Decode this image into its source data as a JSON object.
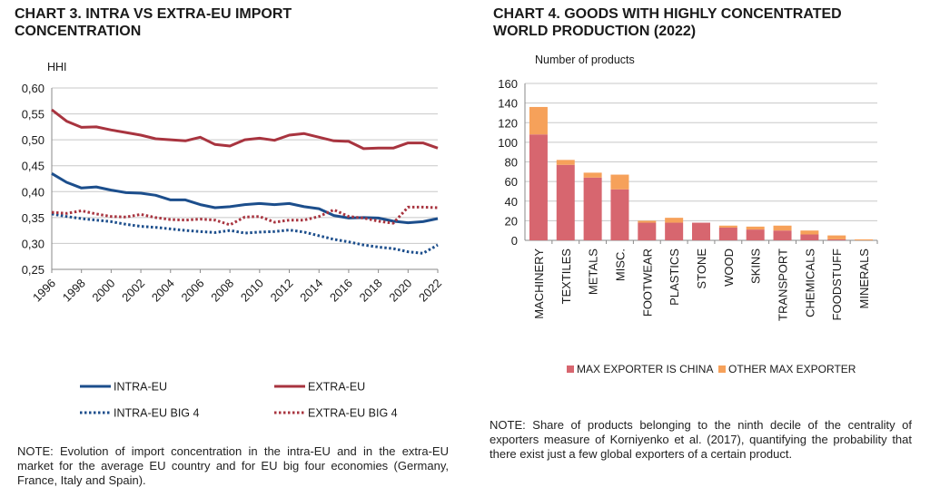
{
  "chart3": {
    "title_line1": "CHART 3. INTRA VS EXTRA-EU IMPORT",
    "title_line2": "CONCENTRATION",
    "note": "NOTE: Evolution of import concentration in the intra-EU and in the extra-EU market for the average EU country and for EU big four economies (Germany, France, Italy and Spain)."
  },
  "chart4": {
    "title_line1": "CHART 4. GOODS WITH HIGHLY CONCENTRATED",
    "title_line2": "WORLD PRODUCTION (2022)",
    "note": "NOTE: Share of products belonging to the ninth decile of the centrality of exporters measure of Korniyenko et al. (2017), quantifying the probability that there exist just a few global exporters of a certain product."
  },
  "chart_data": [
    {
      "type": "line",
      "title": "CHART 3. INTRA VS EXTRA-EU IMPORT CONCENTRATION",
      "ylabel": "HHI",
      "xlabel": "",
      "ylim": [
        0.25,
        0.6
      ],
      "yticks": [
        "0,25",
        "0,30",
        "0,35",
        "0,40",
        "0,45",
        "0,50",
        "0,55",
        "0,60"
      ],
      "xlim": [
        1996,
        2022
      ],
      "xticks": [
        "1996",
        "1998",
        "2000",
        "2002",
        "2004",
        "2006",
        "2008",
        "2010",
        "2012",
        "2014",
        "2016",
        "2018",
        "2020",
        "2022"
      ],
      "grid": true,
      "legend_position": "bottom",
      "x": [
        1996,
        1997,
        1998,
        1999,
        2000,
        2001,
        2002,
        2003,
        2004,
        2005,
        2006,
        2007,
        2008,
        2009,
        2010,
        2011,
        2012,
        2013,
        2014,
        2015,
        2016,
        2017,
        2018,
        2019,
        2020,
        2021,
        2022
      ],
      "series": [
        {
          "name": "INTRA-EU",
          "color": "#1c4e8c",
          "style": "solid",
          "values": [
            0.435,
            0.418,
            0.407,
            0.409,
            0.403,
            0.398,
            0.397,
            0.393,
            0.384,
            0.384,
            0.375,
            0.369,
            0.371,
            0.375,
            0.377,
            0.375,
            0.377,
            0.371,
            0.367,
            0.354,
            0.349,
            0.35,
            0.349,
            0.343,
            0.34,
            0.342,
            0.348
          ]
        },
        {
          "name": "EXTRA-EU",
          "color": "#a8343f",
          "style": "solid",
          "values": [
            0.558,
            0.536,
            0.524,
            0.525,
            0.519,
            0.514,
            0.509,
            0.502,
            0.5,
            0.498,
            0.505,
            0.491,
            0.488,
            0.5,
            0.503,
            0.499,
            0.509,
            0.512,
            0.505,
            0.498,
            0.497,
            0.483,
            0.484,
            0.484,
            0.494,
            0.494,
            0.484
          ]
        },
        {
          "name": "INTRA-EU BIG 4",
          "color": "#1c4e8c",
          "style": "dotted",
          "values": [
            0.357,
            0.352,
            0.348,
            0.345,
            0.342,
            0.337,
            0.333,
            0.331,
            0.328,
            0.325,
            0.323,
            0.321,
            0.325,
            0.32,
            0.322,
            0.323,
            0.326,
            0.322,
            0.315,
            0.308,
            0.303,
            0.297,
            0.293,
            0.29,
            0.284,
            0.281,
            0.297
          ]
        },
        {
          "name": "EXTRA-EU BIG 4",
          "color": "#a8343f",
          "style": "dotted",
          "values": [
            0.36,
            0.358,
            0.363,
            0.357,
            0.352,
            0.351,
            0.356,
            0.35,
            0.346,
            0.345,
            0.347,
            0.345,
            0.336,
            0.351,
            0.352,
            0.341,
            0.345,
            0.345,
            0.352,
            0.365,
            0.352,
            0.349,
            0.343,
            0.339,
            0.37,
            0.37,
            0.369
          ]
        }
      ]
    },
    {
      "type": "bar",
      "stacked": true,
      "title": "CHART 4. GOODS WITH HIGHLY CONCENTRATED WORLD PRODUCTION (2022)",
      "ylabel": "Number of products",
      "xlabel": "",
      "ylim": [
        0,
        160
      ],
      "yticks": [
        "0",
        "20",
        "40",
        "60",
        "80",
        "100",
        "120",
        "140",
        "160"
      ],
      "grid": true,
      "legend_position": "bottom",
      "categories": [
        "MACHINERY",
        "TEXTILES",
        "METALS",
        "MISC.",
        "FOOTWEAR",
        "PLASTICS",
        "STONE",
        "WOOD",
        "SKINS",
        "TRANSPORT",
        "CHEMICALS",
        "FOODSTUFF",
        "MINERALS"
      ],
      "series": [
        {
          "name": "MAX EXPORTER IS CHINA",
          "color": "#d7666f",
          "values": [
            108,
            77,
            64,
            52,
            18,
            18,
            18,
            13,
            11,
            10,
            6,
            1,
            0
          ]
        },
        {
          "name": "OTHER MAX EXPORTER",
          "color": "#f6a15a",
          "values": [
            28,
            5,
            5,
            15,
            2,
            5,
            0,
            2,
            3,
            5,
            4,
            4,
            1
          ]
        }
      ]
    }
  ]
}
